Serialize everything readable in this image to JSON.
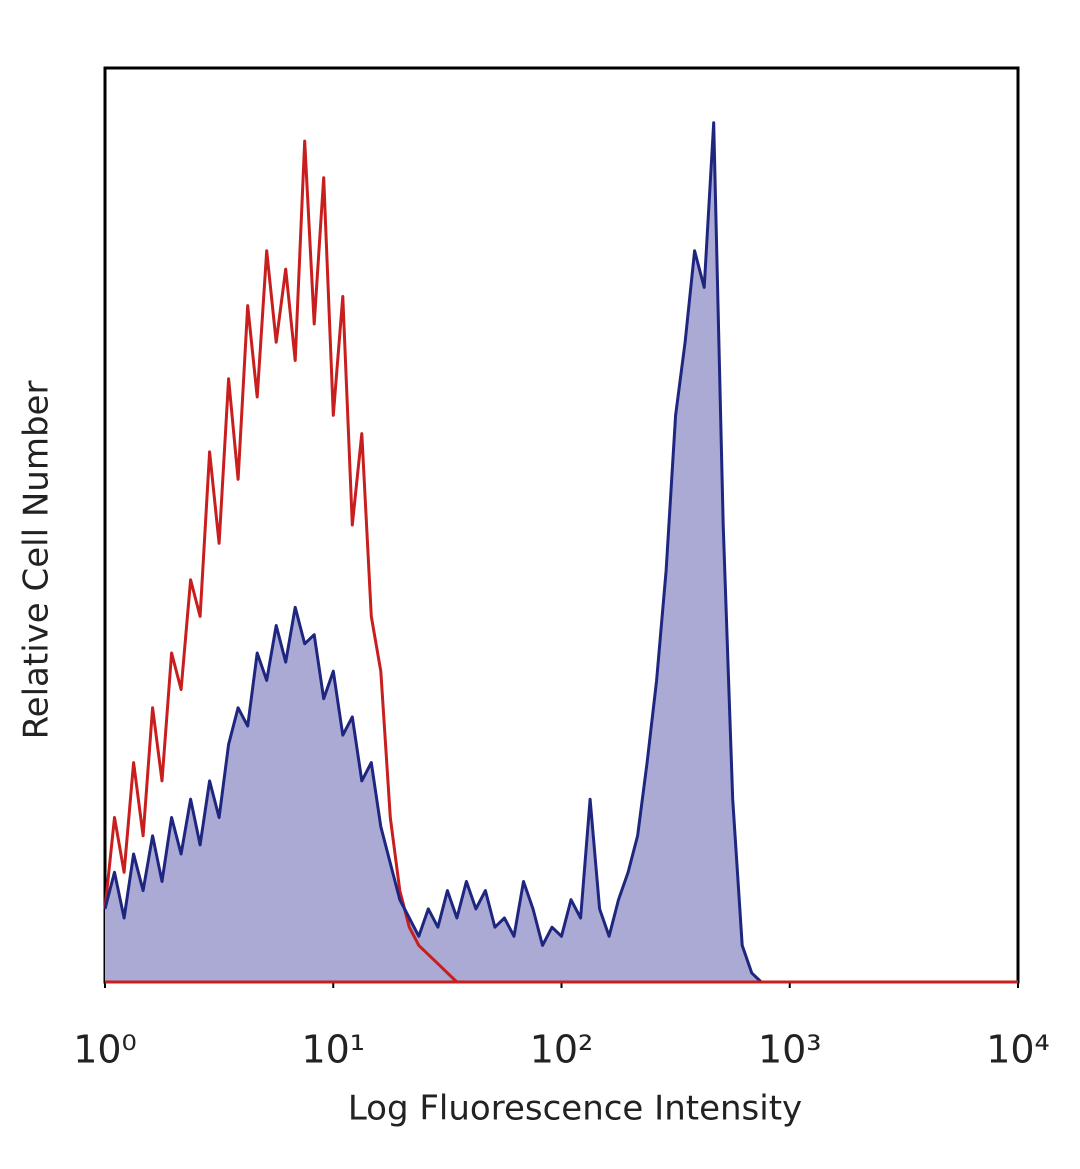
{
  "chart_data": {
    "type": "histogram-overlay",
    "xlabel": "Log Fluorescence Intensity",
    "ylabel": "Relative Cell Number",
    "xscale": "log",
    "xlim": [
      1,
      10000
    ],
    "ylim": [
      0,
      100
    ],
    "xticks": [
      {
        "value": 1,
        "label": "10⁰"
      },
      {
        "value": 10,
        "label": "10¹"
      },
      {
        "value": 100,
        "label": "10²"
      },
      {
        "value": 1000,
        "label": "10³"
      },
      {
        "value": 10000,
        "label": "10⁴"
      }
    ],
    "x": [
      1,
      1.101,
      1.212,
      1.334,
      1.468,
      1.616,
      1.778,
      1.957,
      2.154,
      2.371,
      2.61,
      2.873,
      3.162,
      3.481,
      3.831,
      4.217,
      4.642,
      5.109,
      5.623,
      6.19,
      6.813,
      7.499,
      8.254,
      9.085,
      10,
      11.01,
      12.12,
      13.34,
      14.68,
      16.16,
      17.78,
      19.57,
      21.54,
      23.71,
      26.1,
      28.73,
      31.62,
      34.81,
      38.31,
      42.17,
      46.42,
      51.09,
      56.23,
      61.9,
      68.13,
      74.99,
      82.54,
      90.85,
      100,
      110.1,
      121.2,
      133.4,
      146.8,
      161.6,
      177.8,
      195.7,
      215.4,
      237.1,
      261,
      287.3,
      316.2,
      348.1,
      383.1,
      421.7,
      464.2,
      510.9,
      562.3,
      619,
      681.3,
      749.9,
      825.4,
      908.5,
      1000
    ],
    "series": [
      {
        "color": "#c81e1e",
        "values": [
          8,
          18,
          12,
          24,
          16,
          30,
          22,
          36,
          32,
          44,
          40,
          58,
          48,
          66,
          55,
          74,
          64,
          80,
          70,
          78,
          68,
          92,
          72,
          88,
          62,
          75,
          50,
          60,
          40,
          34,
          18,
          10,
          6,
          4,
          3,
          2,
          1,
          0,
          0,
          0,
          0,
          0,
          0,
          0,
          0,
          0,
          0,
          0,
          0,
          0,
          0,
          0,
          0,
          0,
          0,
          0,
          0,
          0,
          0,
          0,
          0,
          0,
          0,
          0,
          0,
          0,
          0,
          0,
          0,
          0,
          0,
          0,
          0
        ]
      },
      {
        "color": "#1f2680",
        "fill": "#aaaad4",
        "values": [
          8,
          12,
          7,
          14,
          10,
          16,
          11,
          18,
          14,
          20,
          15,
          22,
          18,
          26,
          30,
          28,
          36,
          33,
          39,
          35,
          41,
          37,
          38,
          31,
          34,
          27,
          29,
          22,
          24,
          17,
          13,
          9,
          7,
          5,
          8,
          6,
          10,
          7,
          11,
          8,
          10,
          6,
          7,
          5,
          11,
          8,
          4,
          6,
          5,
          9,
          7,
          20,
          8,
          5,
          9,
          12,
          16,
          24,
          33,
          45,
          62,
          70,
          80,
          76,
          94,
          50,
          20,
          4,
          1,
          0,
          0,
          0,
          0
        ]
      }
    ]
  }
}
